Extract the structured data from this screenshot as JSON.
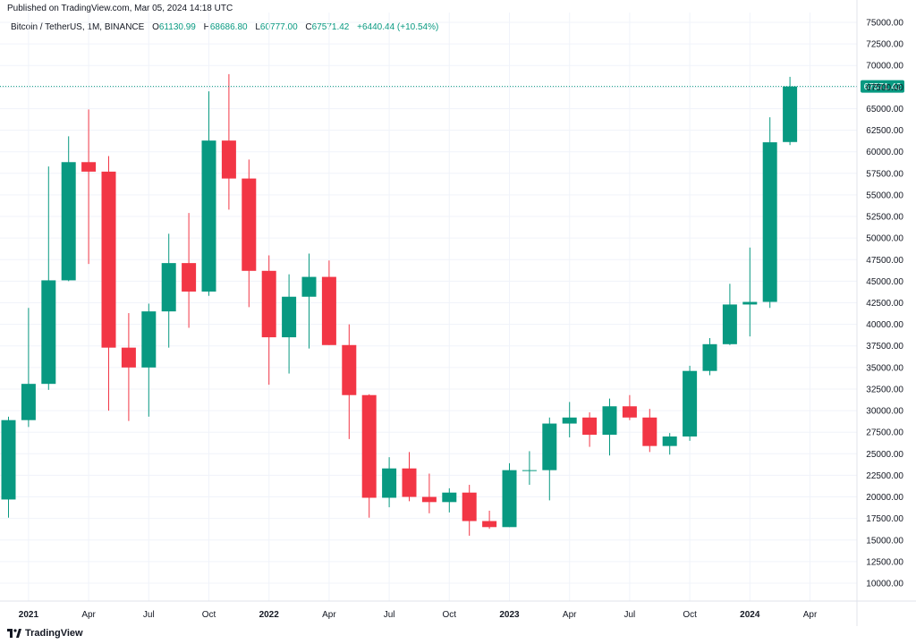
{
  "header": {
    "published": "Published on TradingView.com, Mar 05, 2024 14:18 UTC"
  },
  "legend": {
    "symbol": "Bitcoin / TetherUS, 1M, BINANCE",
    "o_label": "O",
    "o_value": "61130.99",
    "h_label": "H",
    "h_value": "68686.80",
    "l_label": "L",
    "l_value": "60777.00",
    "c_label": "C",
    "c_value": "67571.42",
    "change": "+6440.44 (+10.54%)"
  },
  "brand": {
    "name": "TradingView",
    "icon": "tradingview-logo-icon"
  },
  "colors": {
    "up": "#089981",
    "down": "#f23645",
    "grid": "#f0f3fa",
    "axis": "#e0e3eb"
  },
  "chart_data": {
    "type": "candlestick",
    "interval": "1M",
    "ylim": [
      7500,
      76250
    ],
    "yticks": [
      10000,
      12500,
      15000,
      17500,
      20000,
      22500,
      25000,
      27500,
      30000,
      32500,
      35000,
      37500,
      40000,
      42500,
      45000,
      47500,
      50000,
      52500,
      55000,
      57500,
      60000,
      62500,
      65000,
      67500,
      70000,
      72500,
      75000
    ],
    "ytick_labels": [
      "10000.00",
      "12500.00",
      "15000.00",
      "17500.00",
      "20000.00",
      "22500.00",
      "25000.00",
      "27500.00",
      "30000.00",
      "32500.00",
      "35000.00",
      "37500.00",
      "40000.00",
      "42500.00",
      "45000.00",
      "47500.00",
      "50000.00",
      "52500.00",
      "55000.00",
      "57500.00",
      "60000.00",
      "62500.00",
      "65000.00",
      "67500.00",
      "70000.00",
      "72500.00",
      "75000.00"
    ],
    "last_price": 67571.42,
    "last_price_label": "67571.42",
    "xticks": [
      {
        "index": 1,
        "label": "2021",
        "year": true
      },
      {
        "index": 4,
        "label": "Apr",
        "year": false
      },
      {
        "index": 7,
        "label": "Jul",
        "year": false
      },
      {
        "index": 10,
        "label": "Oct",
        "year": false
      },
      {
        "index": 13,
        "label": "2022",
        "year": true
      },
      {
        "index": 16,
        "label": "Apr",
        "year": false
      },
      {
        "index": 19,
        "label": "Jul",
        "year": false
      },
      {
        "index": 22,
        "label": "Oct",
        "year": false
      },
      {
        "index": 25,
        "label": "2023",
        "year": true
      },
      {
        "index": 28,
        "label": "Apr",
        "year": false
      },
      {
        "index": 31,
        "label": "Jul",
        "year": false
      },
      {
        "index": 34,
        "label": "Oct",
        "year": false
      },
      {
        "index": 37,
        "label": "2024",
        "year": true
      },
      {
        "index": 40,
        "label": "Apr",
        "year": false
      }
    ],
    "candles": [
      {
        "date": "2020-12",
        "o": 19700,
        "h": 29300,
        "l": 17600,
        "c": 28900
      },
      {
        "date": "2021-01",
        "o": 28900,
        "h": 41900,
        "l": 28100,
        "c": 33100
      },
      {
        "date": "2021-02",
        "o": 33100,
        "h": 58300,
        "l": 32400,
        "c": 45100
      },
      {
        "date": "2021-03",
        "o": 45100,
        "h": 61800,
        "l": 45000,
        "c": 58800
      },
      {
        "date": "2021-04",
        "o": 58800,
        "h": 64900,
        "l": 47000,
        "c": 57700
      },
      {
        "date": "2021-05",
        "o": 57700,
        "h": 59500,
        "l": 30000,
        "c": 37300
      },
      {
        "date": "2021-06",
        "o": 37300,
        "h": 41300,
        "l": 28800,
        "c": 35000
      },
      {
        "date": "2021-07",
        "o": 35000,
        "h": 42400,
        "l": 29300,
        "c": 41500
      },
      {
        "date": "2021-08",
        "o": 41500,
        "h": 50500,
        "l": 37300,
        "c": 47100
      },
      {
        "date": "2021-09",
        "o": 47100,
        "h": 52900,
        "l": 39600,
        "c": 43800
      },
      {
        "date": "2021-10",
        "o": 43800,
        "h": 67000,
        "l": 43300,
        "c": 61300
      },
      {
        "date": "2021-11",
        "o": 61300,
        "h": 69000,
        "l": 53300,
        "c": 56900
      },
      {
        "date": "2021-12",
        "o": 56900,
        "h": 59100,
        "l": 42000,
        "c": 46200
      },
      {
        "date": "2022-01",
        "o": 46200,
        "h": 48000,
        "l": 33000,
        "c": 38500
      },
      {
        "date": "2022-02",
        "o": 38500,
        "h": 45800,
        "l": 34300,
        "c": 43200
      },
      {
        "date": "2022-03",
        "o": 43200,
        "h": 48200,
        "l": 37200,
        "c": 45500
      },
      {
        "date": "2022-04",
        "o": 45500,
        "h": 47400,
        "l": 37600,
        "c": 37600
      },
      {
        "date": "2022-05",
        "o": 37600,
        "h": 40000,
        "l": 26700,
        "c": 31800
      },
      {
        "date": "2022-06",
        "o": 31800,
        "h": 31900,
        "l": 17600,
        "c": 19900
      },
      {
        "date": "2022-07",
        "o": 19900,
        "h": 24600,
        "l": 18800,
        "c": 23300
      },
      {
        "date": "2022-08",
        "o": 23300,
        "h": 25200,
        "l": 19500,
        "c": 20000
      },
      {
        "date": "2022-09",
        "o": 20000,
        "h": 22700,
        "l": 18100,
        "c": 19400
      },
      {
        "date": "2022-10",
        "o": 19400,
        "h": 21000,
        "l": 18200,
        "c": 20500
      },
      {
        "date": "2022-11",
        "o": 20500,
        "h": 21400,
        "l": 15500,
        "c": 17200
      },
      {
        "date": "2022-12",
        "o": 17200,
        "h": 18400,
        "l": 16300,
        "c": 16500
      },
      {
        "date": "2023-01",
        "o": 16500,
        "h": 23900,
        "l": 16500,
        "c": 23100
      },
      {
        "date": "2023-02",
        "o": 23100,
        "h": 25300,
        "l": 21400,
        "c": 23100
      },
      {
        "date": "2023-03",
        "o": 23100,
        "h": 29200,
        "l": 19600,
        "c": 28500
      },
      {
        "date": "2023-04",
        "o": 28500,
        "h": 31000,
        "l": 26900,
        "c": 29200
      },
      {
        "date": "2023-05",
        "o": 29200,
        "h": 29800,
        "l": 25800,
        "c": 27200
      },
      {
        "date": "2023-06",
        "o": 27200,
        "h": 31400,
        "l": 24800,
        "c": 30500
      },
      {
        "date": "2023-07",
        "o": 30500,
        "h": 31800,
        "l": 28900,
        "c": 29200
      },
      {
        "date": "2023-08",
        "o": 29200,
        "h": 30200,
        "l": 25200,
        "c": 25900
      },
      {
        "date": "2023-09",
        "o": 25900,
        "h": 27400,
        "l": 24900,
        "c": 27000
      },
      {
        "date": "2023-10",
        "o": 27000,
        "h": 35200,
        "l": 26500,
        "c": 34600
      },
      {
        "date": "2023-11",
        "o": 34600,
        "h": 38400,
        "l": 34100,
        "c": 37700
      },
      {
        "date": "2023-12",
        "o": 37700,
        "h": 44700,
        "l": 37600,
        "c": 42300
      },
      {
        "date": "2024-01",
        "o": 42300,
        "h": 48900,
        "l": 38600,
        "c": 42600
      },
      {
        "date": "2024-02",
        "o": 42600,
        "h": 64000,
        "l": 41900,
        "c": 61100
      },
      {
        "date": "2024-03",
        "o": 61130.99,
        "h": 68686.8,
        "l": 60777.0,
        "c": 67571.42
      }
    ]
  }
}
